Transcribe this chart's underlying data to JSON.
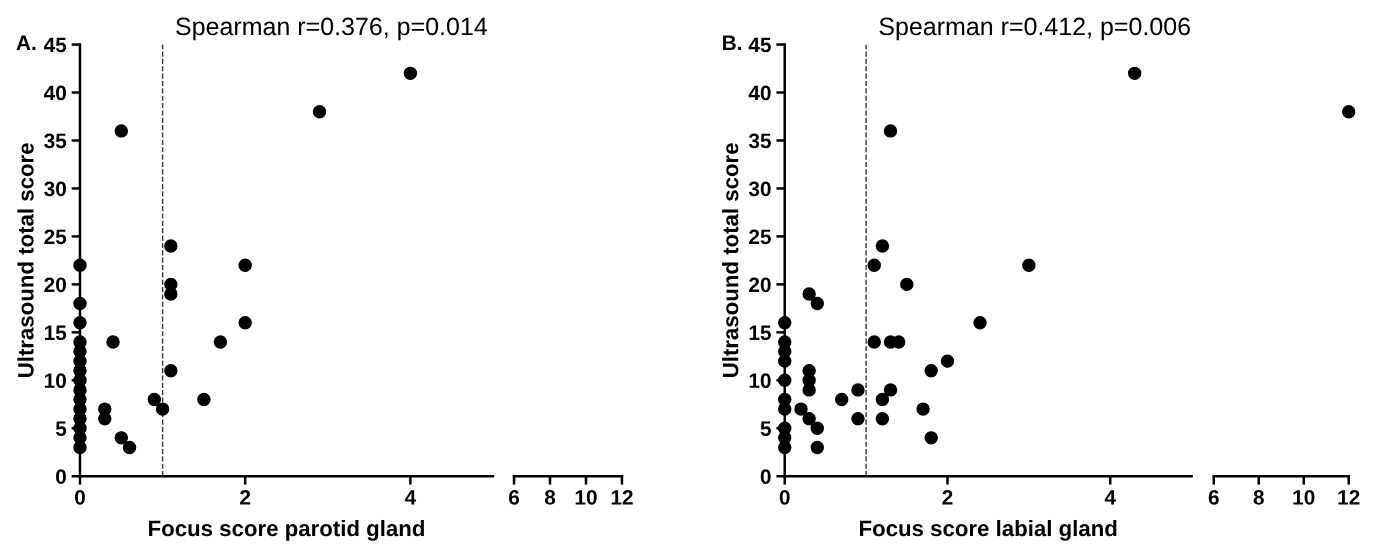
{
  "chart_data": [
    {
      "type": "scatter",
      "title": "A.",
      "xlabel": "Focus score parotid gland",
      "ylabel": "Ultrasound total score",
      "annotations": [
        "Spearman r=0.376, p=0.014"
      ],
      "color": "#000000",
      "marker": "circle",
      "xlim": [
        0,
        5
      ],
      "xticks": [
        0,
        2,
        4
      ],
      "ylim": [
        0,
        45
      ],
      "yticks": [
        0,
        5,
        10,
        15,
        20,
        25,
        30,
        35,
        40,
        45
      ],
      "ref_lines": [
        {
          "axis": "x",
          "value": 1,
          "line_style": "dashed"
        }
      ],
      "x": [
        0,
        0,
        0,
        0,
        0,
        0,
        0,
        0,
        0,
        0,
        0,
        0,
        0,
        0,
        0,
        0.5,
        0.4,
        0.3,
        0.3,
        0.5,
        0.6,
        0.9,
        1.0,
        1.1,
        1.1,
        1.1,
        1.1,
        1.5,
        1.7,
        2.0,
        2.0,
        2.9,
        4.0
      ],
      "values": [
        22,
        18,
        16,
        14,
        13,
        12,
        11,
        10,
        9,
        8,
        7,
        6,
        5,
        4,
        3,
        36,
        14,
        7,
        6,
        4,
        3,
        8,
        7,
        24,
        20,
        19,
        11,
        8,
        14,
        22,
        16,
        38,
        42
      ]
    },
    {
      "type": "scatter",
      "xlim": [
        6,
        12
      ],
      "xticks": [
        6,
        8,
        10,
        12
      ],
      "ylim": [
        0,
        45
      ],
      "tick_labels": "x"
    },
    {
      "type": "scatter",
      "title": "B.",
      "xlabel": "Focus score labial gland",
      "ylabel": "Ultrasound total score",
      "annotations": [
        "Spearman r=0.412, p=0.006"
      ],
      "color": "#000000",
      "marker": "circle",
      "xlim": [
        0,
        5
      ],
      "xticks": [
        0,
        2,
        4
      ],
      "ylim": [
        0,
        45
      ],
      "yticks": [
        0,
        5,
        10,
        15,
        20,
        25,
        30,
        35,
        40,
        45
      ],
      "ref_lines": [
        {
          "axis": "x",
          "value": 1,
          "line_style": "dashed"
        }
      ],
      "x": [
        0,
        0,
        0,
        0,
        0,
        0,
        0,
        0,
        0,
        0,
        0.2,
        0.3,
        0.3,
        0.3,
        0.3,
        0.3,
        0.4,
        0.4,
        0.4,
        0.7,
        0.9,
        0.9,
        1.1,
        1.1,
        1.2,
        1.2,
        1.2,
        1.3,
        1.3,
        1.3,
        1.4,
        1.5,
        1.7,
        1.8,
        1.8,
        2.0,
        2.4,
        3.0,
        4.3
      ],
      "values": [
        16,
        14,
        13,
        12,
        10,
        8,
        7,
        5,
        4,
        3,
        7,
        19,
        11,
        10,
        9,
        6,
        18,
        5,
        3,
        8,
        9,
        6,
        22,
        14,
        24,
        8,
        6,
        36,
        14,
        9,
        14,
        20,
        7,
        11,
        4,
        12,
        16,
        22,
        42
      ]
    },
    {
      "type": "scatter",
      "color": "#000000",
      "marker": "circle",
      "xlim": [
        6,
        12
      ],
      "xticks": [
        6,
        8,
        10,
        12
      ],
      "ylim": [
        0,
        45
      ],
      "tick_labels": "x",
      "x": [
        12
      ],
      "values": [
        38
      ]
    }
  ]
}
